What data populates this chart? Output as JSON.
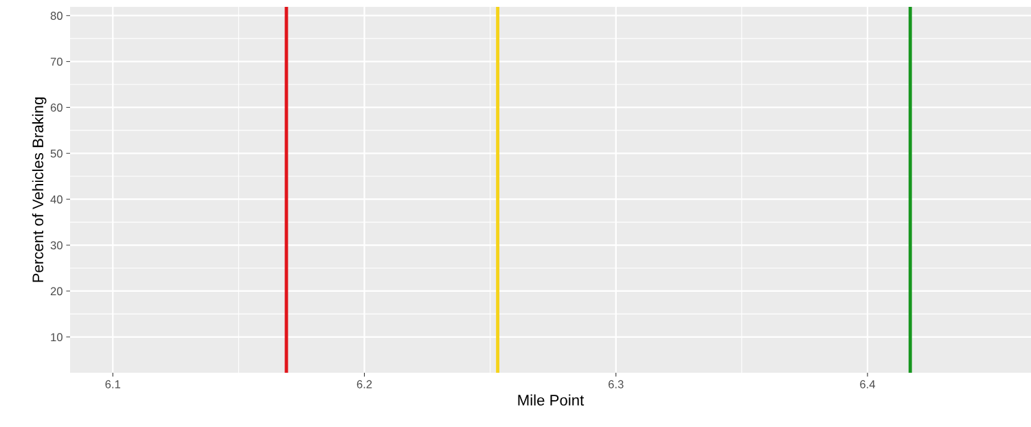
{
  "chart_data": {
    "type": "line",
    "xlabel": "Mile Point",
    "ylabel": "Percent of Vehicles Braking",
    "xlim": [
      6.083,
      6.465
    ],
    "xticks": [
      6.1,
      6.2,
      6.3,
      6.4
    ],
    "ylim": [
      2.2,
      81.9
    ],
    "yticks": [
      10,
      20,
      30,
      40,
      50,
      60,
      70,
      80
    ],
    "grid": true,
    "ref_lines": [
      {
        "axis": "x",
        "value": 6.169,
        "color": "#e0161c"
      },
      {
        "axis": "x",
        "value": 6.253,
        "color": "#f5d31a"
      },
      {
        "axis": "x",
        "value": 6.417,
        "color": "#16961e"
      }
    ]
  }
}
